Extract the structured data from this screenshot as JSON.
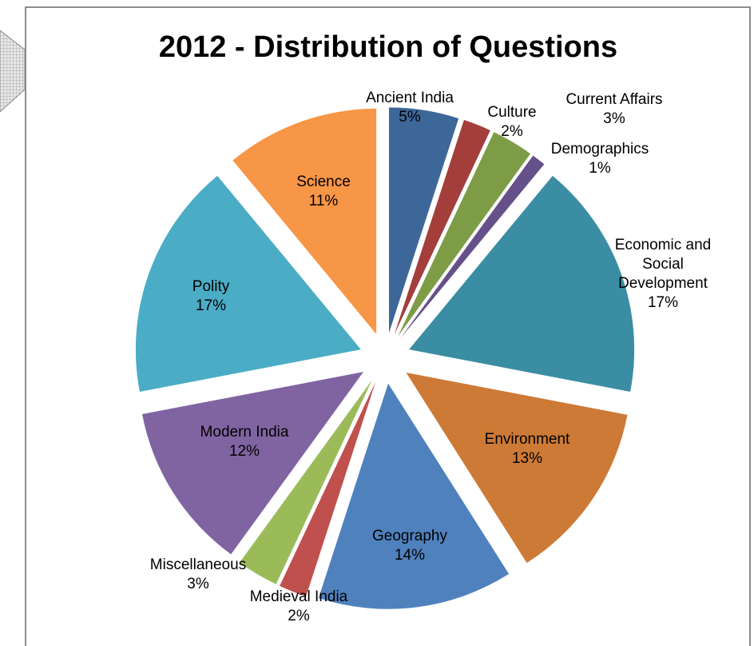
{
  "chart_data": {
    "type": "pie",
    "title": "2012 - Distribution of Questions",
    "slices": [
      {
        "label": "Ancient India",
        "value": 5,
        "pct_label": "5%",
        "color": "#3e6799"
      },
      {
        "label": "Culture",
        "value": 2,
        "pct_label": "2%",
        "color": "#a33e3b"
      },
      {
        "label": "Current Affairs",
        "value": 3,
        "pct_label": "3%",
        "color": "#7e9c46"
      },
      {
        "label": "Demographics",
        "value": 1,
        "pct_label": "1%",
        "color": "#65508a"
      },
      {
        "label": "Economic and Social Development",
        "value": 17,
        "pct_label": "17%",
        "color": "#3b8da3"
      },
      {
        "label": "Environment",
        "value": 13,
        "pct_label": "13%",
        "color": "#cd7a37"
      },
      {
        "label": "Geography",
        "value": 14,
        "pct_label": "14%",
        "color": "#4f81bd"
      },
      {
        "label": "Medieval India",
        "value": 2,
        "pct_label": "2%",
        "color": "#c0504d"
      },
      {
        "label": "Miscellaneous",
        "value": 3,
        "pct_label": "3%",
        "color": "#9bbb59"
      },
      {
        "label": "Modern India",
        "value": 12,
        "pct_label": "12%",
        "color": "#8064a2"
      },
      {
        "label": "Polity",
        "value": 17,
        "pct_label": "17%",
        "color": "#4bacc6"
      },
      {
        "label": "Science",
        "value": 11,
        "pct_label": "11%",
        "color": "#f79646"
      }
    ],
    "label_lines": {
      "Economic and Social Development": [
        "Economic and",
        "Social",
        "Development"
      ]
    },
    "exploded": true
  }
}
